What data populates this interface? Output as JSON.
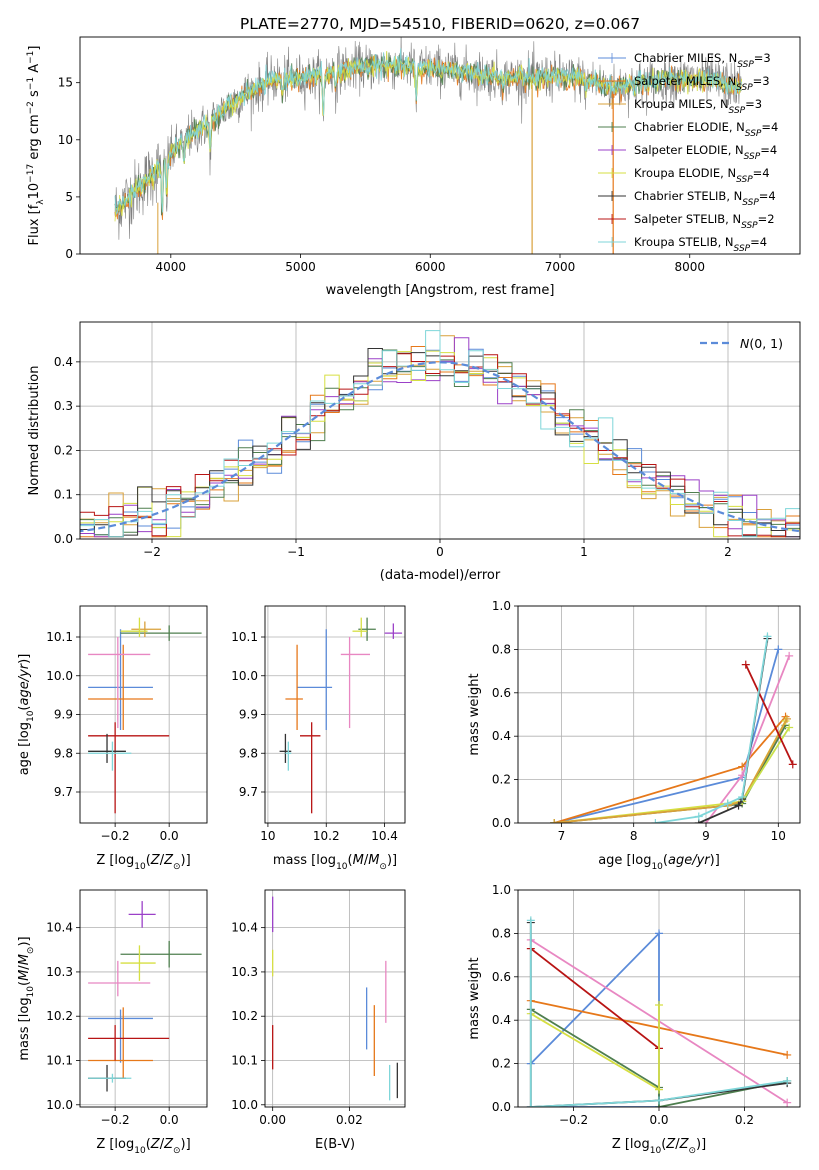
{
  "figure_title": "PLATE=2770, MJD=54510, FIBERID=0620, z=0.067",
  "colors": {
    "c_blue": "#5b8bd9",
    "c_orange": "#e6781a",
    "c_gold": "#d9a03a",
    "c_green": "#4f7f4f",
    "c_purple": "#9b40c8",
    "c_yellow": "#d6df42",
    "c_black": "#333333",
    "c_red": "#b81414",
    "c_cyan": "#7fd6d9",
    "c_pink": "#e887c2",
    "c_gray": "#808080",
    "c_lime": "#c9e04a"
  },
  "chart_data": [
    {
      "id": "spectrum",
      "type": "line",
      "title": "PLATE=2770, MJD=54510, FIBERID=0620, z=0.067",
      "xlabel": "wavelength [Angstrom, rest frame]",
      "ylabel": "Flux [f_λ10^-17 erg cm^-2 s^-1 A^-1]",
      "xlim": [
        3300,
        8850
      ],
      "ylim": [
        0,
        19
      ],
      "xticks": [
        4000,
        5000,
        6000,
        7000,
        8000
      ],
      "yticks": [
        0,
        5,
        10,
        15
      ],
      "grid": false,
      "legend_position": "top-right",
      "continuum": {
        "x": [
          3570,
          3700,
          3900,
          4100,
          4300,
          4500,
          4800,
          5100,
          5400,
          5700,
          6000,
          6300,
          6600,
          6900,
          7200,
          7400,
          7600,
          7900,
          8200,
          8400
        ],
        "y": [
          3.8,
          5.2,
          7.5,
          10.0,
          11.5,
          13.5,
          15.3,
          15.5,
          16.3,
          16.5,
          16.3,
          15.9,
          15.4,
          15.5,
          15.3,
          14.5,
          14.9,
          15.4,
          15.1,
          14.6
        ]
      },
      "series": [
        {
          "name": "Chabrier MILES, N_SSP=3",
          "color_key": "c_blue"
        },
        {
          "name": "Salpeter MILES, N_SSP=3",
          "color_key": "c_orange"
        },
        {
          "name": "Kroupa MILES, N_SSP=3",
          "color_key": "c_gold"
        },
        {
          "name": "Chabrier ELODIE, N_SSP=4",
          "color_key": "c_green"
        },
        {
          "name": "Salpeter ELODIE, N_SSP=4",
          "color_key": "c_purple"
        },
        {
          "name": "Kroupa ELODIE, N_SSP=4",
          "color_key": "c_yellow"
        },
        {
          "name": "Chabrier STELIB, N_SSP=4",
          "color_key": "c_black"
        },
        {
          "name": "Salpeter STELIB, N_SSP=2",
          "color_key": "c_red"
        },
        {
          "name": "Kroupa STELIB, N_SSP=4",
          "color_key": "c_cyan"
        }
      ]
    },
    {
      "id": "hist",
      "type": "histogram",
      "xlabel": "(data-model)/error",
      "ylabel": "Normed distribution",
      "xlim": [
        -2.5,
        2.5
      ],
      "ylim": [
        0,
        0.49
      ],
      "xticks": [
        -2,
        -1,
        0,
        1,
        2
      ],
      "xticklabels": [
        "−2",
        "−1",
        "0",
        "1",
        "2"
      ],
      "yticks": [
        0.0,
        0.1,
        0.2,
        0.3,
        0.4
      ],
      "grid": true,
      "legend_position": "top-right",
      "legend_label": "N(0,1)",
      "bin_width": 0.1,
      "series_colors": [
        "c_blue",
        "c_orange",
        "c_gold",
        "c_green",
        "c_purple",
        "c_yellow",
        "c_black",
        "c_red",
        "c_cyan"
      ]
    },
    {
      "id": "age_vs_Z",
      "type": "scatter",
      "xlabel": "Z [log10(Z/Z☉)]",
      "ylabel": "age [log10(age/yr)]",
      "xlim": [
        -0.33,
        0.14
      ],
      "ylim": [
        9.62,
        10.18
      ],
      "xticks": [
        -0.2,
        0.0
      ],
      "xticklabels": [
        "−0.2",
        "0.0"
      ],
      "yticks": [
        9.7,
        9.8,
        9.9,
        10.0,
        10.1
      ],
      "grid": true,
      "points": [
        {
          "color_key": "c_blue",
          "x": -0.18,
          "xerr": [
            0.12,
            0.12
          ],
          "y": 9.97,
          "yerr": [
            0.11,
            0.15
          ]
        },
        {
          "color_key": "c_orange",
          "x": -0.17,
          "xerr": [
            0.13,
            0.11
          ],
          "y": 9.94,
          "yerr": [
            0.08,
            0.14
          ]
        },
        {
          "color_key": "c_pink",
          "x": -0.19,
          "xerr": [
            0.11,
            0.12
          ],
          "y": 10.055,
          "yerr": [
            0.19,
            0.045
          ]
        },
        {
          "color_key": "c_green",
          "x": 0.0,
          "xerr": [
            0.18,
            0.12
          ],
          "y": 10.11,
          "yerr": [
            0.02,
            0.02
          ]
        },
        {
          "color_key": "c_gold",
          "x": -0.09,
          "xerr": [
            0.05,
            0.06
          ],
          "y": 10.12,
          "yerr": [
            0.02,
            0.02
          ]
        },
        {
          "color_key": "c_yellow",
          "x": -0.11,
          "xerr": [
            0.07,
            0.03
          ],
          "y": 10.115,
          "yerr": [
            0.015,
            0.035
          ]
        },
        {
          "color_key": "c_red",
          "x": -0.2,
          "xerr": [
            0.1,
            0.2
          ],
          "y": 9.845,
          "yerr": [
            0.2,
            0.035
          ]
        },
        {
          "color_key": "c_black",
          "x": -0.23,
          "xerr": [
            0.07,
            0.07
          ],
          "y": 9.805,
          "yerr": [
            0.03,
            0.045
          ]
        },
        {
          "color_key": "c_cyan",
          "x": -0.21,
          "xerr": [
            0.09,
            0.07
          ],
          "y": 9.8,
          "yerr": [
            0.045,
            0.03
          ]
        }
      ]
    },
    {
      "id": "age_vs_mass",
      "type": "scatter",
      "xlabel": "mass [log10(M/M☉)]",
      "ylabel": "",
      "xlim": [
        9.99,
        10.47
      ],
      "ylim": [
        9.62,
        10.18
      ],
      "xticks": [
        10.0,
        10.2,
        10.4
      ],
      "yticks": [
        9.7,
        9.8,
        9.9,
        10.0,
        10.1
      ],
      "grid": true,
      "points": [
        {
          "color_key": "c_blue",
          "x": 10.2,
          "xerr": [
            0.1,
            0.02
          ],
          "y": 9.97,
          "yerr": [
            0.11,
            0.15
          ]
        },
        {
          "color_key": "c_orange",
          "x": 10.1,
          "xerr": [
            0.04,
            0.02
          ],
          "y": 9.94,
          "yerr": [
            0.08,
            0.14
          ]
        },
        {
          "color_key": "c_pink",
          "x": 10.28,
          "xerr": [
            0.03,
            0.07
          ],
          "y": 10.055,
          "yerr": [
            0.19,
            0.045
          ]
        },
        {
          "color_key": "c_green",
          "x": 10.34,
          "xerr": [
            0.03,
            0.03
          ],
          "y": 10.12,
          "yerr": [
            0.03,
            0.03
          ]
        },
        {
          "color_key": "c_yellow",
          "x": 10.32,
          "xerr": [
            0.03,
            0.02
          ],
          "y": 10.115,
          "yerr": [
            0.015,
            0.035
          ]
        },
        {
          "color_key": "c_purple",
          "x": 10.43,
          "xerr": [
            0.03,
            0.03
          ],
          "y": 10.11,
          "yerr": [
            0.015,
            0.025
          ]
        },
        {
          "color_key": "c_red",
          "x": 10.15,
          "xerr": [
            0.04,
            0.03
          ],
          "y": 9.845,
          "yerr": [
            0.2,
            0.035
          ]
        },
        {
          "color_key": "c_black",
          "x": 10.06,
          "xerr": [
            0.02,
            0.02
          ],
          "y": 9.805,
          "yerr": [
            0.03,
            0.045
          ]
        },
        {
          "color_key": "c_cyan",
          "x": 10.07,
          "xerr": [
            0.01,
            0.01
          ],
          "y": 9.8,
          "yerr": [
            0.045,
            0.03
          ]
        }
      ]
    },
    {
      "id": "weight_vs_age",
      "type": "line",
      "xlabel": "age [log10(age/yr)]",
      "ylabel": "mass weight",
      "xlim": [
        6.4,
        10.3
      ],
      "ylim": [
        0,
        1
      ],
      "xticks": [
        7,
        8,
        9,
        10
      ],
      "yticks": [
        0.0,
        0.2,
        0.4,
        0.6,
        0.8,
        1.0
      ],
      "yticklabels": [
        "0.0",
        "0.2",
        "0.4",
        "0.6",
        "0.8",
        "1.0"
      ],
      "grid": true,
      "series": [
        {
          "color_key": "c_blue",
          "x": [
            6.9,
            9.5,
            10.0
          ],
          "y": [
            0.0,
            0.21,
            0.8
          ]
        },
        {
          "color_key": "c_orange",
          "x": [
            6.9,
            9.5,
            10.1
          ],
          "y": [
            0.0,
            0.26,
            0.49
          ]
        },
        {
          "color_key": "c_pink",
          "x": [
            9.0,
            9.5,
            10.15
          ],
          "y": [
            0.0,
            0.22,
            0.77
          ]
        },
        {
          "color_key": "c_green",
          "x": [
            6.9,
            9.3,
            9.5,
            10.1
          ],
          "y": [
            0.0,
            0.08,
            0.09,
            0.45
          ]
        },
        {
          "color_key": "c_yellow",
          "x": [
            6.9,
            9.3,
            9.5,
            10.1
          ],
          "y": [
            0.0,
            0.09,
            0.1,
            0.47
          ]
        },
        {
          "color_key": "c_gold",
          "x": [
            6.9,
            9.3,
            9.5,
            10.12
          ],
          "y": [
            0.0,
            0.08,
            0.1,
            0.48
          ]
        },
        {
          "color_key": "c_lime",
          "x": [
            9.5,
            10.15
          ],
          "y": [
            0.1,
            0.44
          ]
        },
        {
          "color_key": "c_red",
          "x": [
            9.55,
            10.2
          ],
          "y": [
            0.73,
            0.27
          ]
        },
        {
          "color_key": "c_black",
          "x": [
            8.9,
            9.45,
            9.5,
            9.85
          ],
          "y": [
            0.0,
            0.08,
            0.11,
            0.85
          ]
        },
        {
          "color_key": "c_cyan",
          "x": [
            8.3,
            8.9,
            9.3,
            9.5,
            9.85
          ],
          "y": [
            0.0,
            0.03,
            0.09,
            0.12,
            0.86
          ]
        }
      ]
    },
    {
      "id": "mass_vs_Z",
      "type": "scatter",
      "xlabel": "Z [log10(Z/Z☉)]",
      "ylabel": "mass [log10(M/M☉)]",
      "xlim": [
        -0.33,
        0.14
      ],
      "ylim": [
        9.995,
        10.485
      ],
      "xticks": [
        -0.2,
        0.0
      ],
      "xticklabels": [
        "−0.2",
        "0.0"
      ],
      "yticks": [
        10.0,
        10.1,
        10.2,
        10.3,
        10.4
      ],
      "grid": true,
      "points": [
        {
          "color_key": "c_blue",
          "x": -0.18,
          "xerr": [
            0.12,
            0.12
          ],
          "y": 10.195,
          "yerr": [
            0.1,
            0.02
          ]
        },
        {
          "color_key": "c_orange",
          "x": -0.17,
          "xerr": [
            0.13,
            0.11
          ],
          "y": 10.1,
          "yerr": [
            0.04,
            0.12
          ]
        },
        {
          "color_key": "c_pink",
          "x": -0.19,
          "xerr": [
            0.11,
            0.12
          ],
          "y": 10.275,
          "yerr": [
            0.03,
            0.05
          ]
        },
        {
          "color_key": "c_green",
          "x": 0.0,
          "xerr": [
            0.18,
            0.12
          ],
          "y": 10.34,
          "yerr": [
            0.03,
            0.03
          ]
        },
        {
          "color_key": "c_purple",
          "x": -0.1,
          "xerr": [
            0.05,
            0.05
          ],
          "y": 10.43,
          "yerr": [
            0.03,
            0.03
          ]
        },
        {
          "color_key": "c_yellow",
          "x": -0.11,
          "xerr": [
            0.07,
            0.06
          ],
          "y": 10.32,
          "yerr": [
            0.04,
            0.04
          ]
        },
        {
          "color_key": "c_red",
          "x": -0.2,
          "xerr": [
            0.1,
            0.2
          ],
          "y": 10.15,
          "yerr": [
            0.05,
            0.03
          ]
        },
        {
          "color_key": "c_black",
          "x": -0.23,
          "xerr": [
            0.07,
            0.07
          ],
          "y": 10.06,
          "yerr": [
            0.03,
            0.03
          ]
        },
        {
          "color_key": "c_cyan",
          "x": -0.21,
          "xerr": [
            0.09,
            0.07
          ],
          "y": 10.06,
          "yerr": [
            0.01,
            0.01
          ]
        }
      ]
    },
    {
      "id": "mass_vs_EBV",
      "type": "scatter",
      "xlabel": "E(B-V)",
      "ylabel": "",
      "xlim": [
        -0.002,
        0.0345
      ],
      "ylim": [
        9.995,
        10.485
      ],
      "xticks": [
        0.0,
        0.02
      ],
      "xticklabels": [
        "0.00",
        "0.02"
      ],
      "yticks": [
        10.0,
        10.1,
        10.2,
        10.3,
        10.4
      ],
      "grid": true,
      "points": [
        {
          "color_key": "c_purple",
          "x": 0.0,
          "xerr": [
            0,
            0
          ],
          "y": 10.43,
          "yerr": [
            0.04,
            0.04
          ]
        },
        {
          "color_key": "c_yellow",
          "x": 0.0,
          "xerr": [
            0,
            0
          ],
          "y": 10.32,
          "yerr": [
            0.03,
            0.03
          ]
        },
        {
          "color_key": "c_red",
          "x": 0.0,
          "xerr": [
            0,
            0
          ],
          "y": 10.13,
          "yerr": [
            0.05,
            0.05
          ]
        },
        {
          "color_key": "c_blue",
          "x": 0.0245,
          "xerr": [
            0,
            0
          ],
          "y": 10.195,
          "yerr": [
            0.07,
            0.07
          ]
        },
        {
          "color_key": "c_orange",
          "x": 0.0265,
          "xerr": [
            0,
            0
          ],
          "y": 10.145,
          "yerr": [
            0.08,
            0.08
          ]
        },
        {
          "color_key": "c_pink",
          "x": 0.0295,
          "xerr": [
            0,
            0
          ],
          "y": 10.255,
          "yerr": [
            0.07,
            0.07
          ]
        },
        {
          "color_key": "c_cyan",
          "x": 0.0305,
          "xerr": [
            0,
            0
          ],
          "y": 10.05,
          "yerr": [
            0.04,
            0.04
          ]
        },
        {
          "color_key": "c_black",
          "x": 0.0325,
          "xerr": [
            0,
            0
          ],
          "y": 10.055,
          "yerr": [
            0.04,
            0.04
          ]
        }
      ]
    },
    {
      "id": "weight_vs_Z",
      "type": "line",
      "xlabel": "Z [log10(Z/Z☉)]",
      "ylabel": "mass weight",
      "xlim": [
        -0.33,
        0.33
      ],
      "ylim": [
        0,
        1
      ],
      "xticks": [
        -0.2,
        0.0,
        0.2
      ],
      "xticklabels": [
        "−0.2",
        "0.0",
        "0.2"
      ],
      "yticks": [
        0.0,
        0.2,
        0.4,
        0.6,
        0.8,
        1.0
      ],
      "yticklabels": [
        "0.0",
        "0.2",
        "0.4",
        "0.6",
        "0.8",
        "1.0"
      ],
      "grid": true,
      "series": [
        {
          "color_key": "c_blue",
          "x": [
            -0.3,
            0.0,
            0.0,
            -0.3
          ],
          "y": [
            0.2,
            0.8,
            0.0,
            0.0
          ]
        },
        {
          "color_key": "c_orange",
          "x": [
            -0.3,
            0.3
          ],
          "y": [
            0.49,
            0.24
          ]
        },
        {
          "color_key": "c_pink",
          "x": [
            -0.3,
            0.3
          ],
          "y": [
            0.77,
            0.02
          ]
        },
        {
          "color_key": "c_red",
          "x": [
            -0.3,
            0.0
          ],
          "y": [
            0.73,
            0.27
          ]
        },
        {
          "color_key": "c_green",
          "x": [
            -0.3,
            0.0,
            0.0,
            0.3
          ],
          "y": [
            0.45,
            0.09,
            0.0,
            0.12
          ]
        },
        {
          "color_key": "c_yellow",
          "x": [
            -0.3,
            0.0,
            0.0
          ],
          "y": [
            0.43,
            0.08,
            0.47
          ]
        },
        {
          "color_key": "c_black",
          "x": [
            -0.3,
            -0.3,
            0.0,
            0.3
          ],
          "y": [
            0.85,
            0.0,
            0.03,
            0.11
          ]
        },
        {
          "color_key": "c_cyan",
          "x": [
            -0.3,
            -0.3,
            0.0,
            0.3
          ],
          "y": [
            0.86,
            0.0,
            0.03,
            0.12
          ]
        }
      ]
    }
  ]
}
